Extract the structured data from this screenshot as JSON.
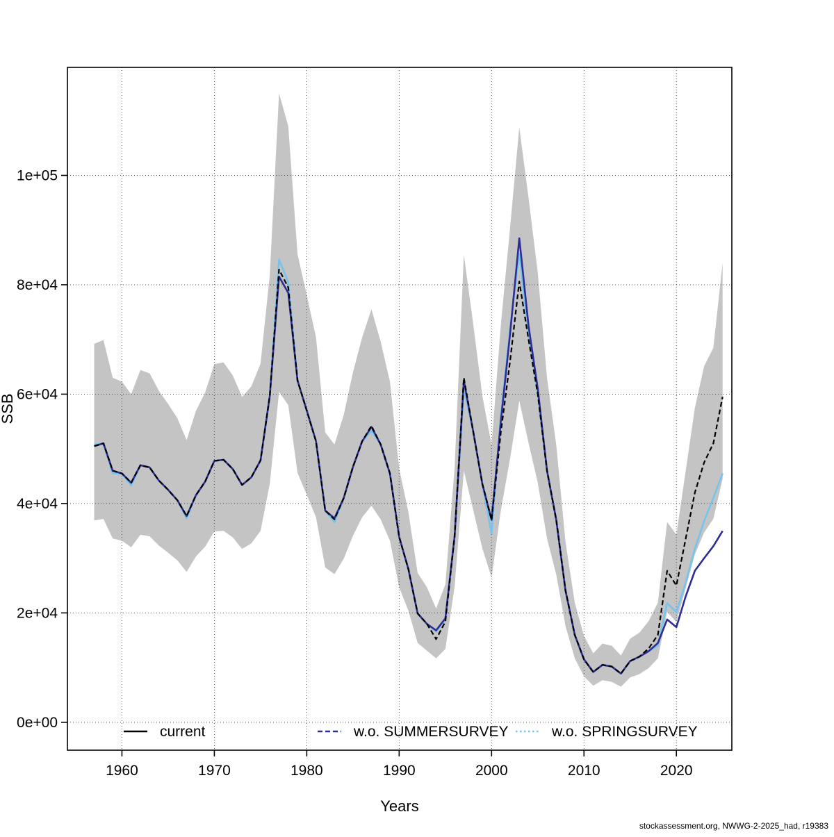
{
  "footer": "stockassessment.org, NWWG-2-2025_had, r19383",
  "chart_data": {
    "type": "line",
    "title": "",
    "xlabel": "Years",
    "ylabel": "SSB",
    "grid": true,
    "legend_position": "bottom",
    "xlim": [
      1954.1,
      2026.0
    ],
    "ylim": [
      -5100,
      119750
    ],
    "x_ticks": [
      1960,
      1970,
      1980,
      1990,
      2000,
      2010,
      2020
    ],
    "y_ticks": [
      {
        "value": 0,
        "label": "0e+00"
      },
      {
        "value": 20000,
        "label": "2e+04"
      },
      {
        "value": 40000,
        "label": "4e+04"
      },
      {
        "value": 60000,
        "label": "6e+04"
      },
      {
        "value": 80000,
        "label": "8e+04"
      },
      {
        "value": 100000,
        "label": "1e+05"
      }
    ],
    "years": [
      1957,
      1958,
      1959,
      1960,
      1961,
      1962,
      1963,
      1964,
      1965,
      1966,
      1967,
      1968,
      1969,
      1970,
      1971,
      1972,
      1973,
      1974,
      1975,
      1976,
      1977,
      1978,
      1979,
      1980,
      1981,
      1982,
      1983,
      1984,
      1985,
      1986,
      1987,
      1988,
      1989,
      1990,
      1991,
      1992,
      1993,
      1994,
      1995,
      1996,
      1997,
      1998,
      1999,
      2000,
      2001,
      2002,
      2003,
      2004,
      2005,
      2006,
      2007,
      2008,
      2009,
      2010,
      2011,
      2012,
      2013,
      2014,
      2015,
      2016,
      2017,
      2018,
      2019,
      2020,
      2021,
      2022,
      2023,
      2024,
      2025
    ],
    "series": [
      {
        "name": "current",
        "color": "#000000",
        "plot_style": "dashed",
        "legend_style": "solid",
        "values": [
          50500,
          51000,
          46000,
          45500,
          43800,
          47000,
          46600,
          44200,
          42500,
          40600,
          37700,
          41500,
          44000,
          47800,
          48000,
          46300,
          43400,
          44800,
          47900,
          59700,
          82800,
          79500,
          62500,
          57000,
          51400,
          38700,
          37100,
          41000,
          46700,
          51400,
          54200,
          50800,
          45500,
          33900,
          28000,
          19900,
          18000,
          15200,
          18400,
          34000,
          63000,
          53300,
          43600,
          37000,
          53000,
          66000,
          80600,
          70000,
          60000,
          46000,
          37000,
          24100,
          16000,
          11500,
          9200,
          10500,
          10200,
          8900,
          11200,
          12000,
          13500,
          16000,
          27700,
          25000,
          33500,
          42000,
          47500,
          51000,
          59500
        ]
      },
      {
        "name": "w.o. SUMMERSURVEY",
        "color": "#2e2d93",
        "plot_style": "solid",
        "legend_style": "dashed",
        "values": [
          50500,
          51000,
          46000,
          45500,
          43800,
          47000,
          46600,
          44200,
          42500,
          40600,
          37700,
          41500,
          44000,
          47800,
          48000,
          46300,
          43400,
          44800,
          47900,
          59700,
          81500,
          78500,
          62500,
          57000,
          51400,
          38700,
          37300,
          41000,
          46700,
          51400,
          54000,
          50800,
          45500,
          33900,
          28000,
          19900,
          18000,
          16800,
          19000,
          34000,
          62500,
          53300,
          43600,
          37000,
          55000,
          71000,
          88500,
          72500,
          61000,
          46000,
          37000,
          24100,
          16000,
          11500,
          9200,
          10500,
          10200,
          8900,
          11200,
          12000,
          13000,
          14500,
          18800,
          17400,
          23000,
          27700,
          30000,
          32200,
          35000
        ]
      },
      {
        "name": "w.o. SPRINGSURVEY",
        "color": "#76c4ec",
        "plot_style": "solid",
        "legend_style": "dotted",
        "values": [
          50800,
          51000,
          45500,
          45500,
          43300,
          47000,
          46600,
          44200,
          42500,
          40600,
          37300,
          41500,
          44000,
          47800,
          48000,
          46300,
          43400,
          44800,
          47900,
          59700,
          84600,
          80500,
          62500,
          57000,
          51400,
          38700,
          36600,
          41000,
          46700,
          51400,
          53300,
          50800,
          45500,
          33900,
          28000,
          19900,
          18000,
          16600,
          18800,
          34000,
          61000,
          53300,
          43600,
          34500,
          56000,
          72000,
          85700,
          71000,
          60000,
          46000,
          37000,
          24100,
          16000,
          11500,
          9200,
          10500,
          10200,
          8900,
          11200,
          12000,
          13000,
          14000,
          21800,
          20100,
          25500,
          31700,
          36800,
          41000,
          45500
        ]
      }
    ],
    "band": {
      "belongs_to": "current",
      "color": "#c4c4c4",
      "hi": [
        69200,
        69900,
        63000,
        62300,
        60000,
        64400,
        63800,
        60600,
        58200,
        55600,
        51600,
        56900,
        60300,
        65500,
        65800,
        63400,
        59500,
        61400,
        65600,
        81800,
        115000,
        109000,
        85600,
        78100,
        70400,
        53000,
        50800,
        56200,
        64000,
        70400,
        75500,
        69600,
        62300,
        46400,
        38400,
        27300,
        24700,
        20800,
        25200,
        46600,
        85500,
        73000,
        59700,
        50700,
        72600,
        90400,
        108800,
        95900,
        82200,
        63000,
        50700,
        33000,
        21900,
        15800,
        12600,
        14400,
        14000,
        12200,
        15300,
        16400,
        18500,
        21900,
        36600,
        34300,
        45900,
        57500,
        65100,
        68500,
        84000
      ],
      "lo": [
        36900,
        37200,
        33600,
        33200,
        32000,
        34300,
        34000,
        32300,
        31000,
        29600,
        27500,
        30300,
        32100,
        34900,
        35000,
        33800,
        31700,
        32700,
        35000,
        43600,
        60400,
        58000,
        45600,
        41600,
        37500,
        28300,
        27100,
        29900,
        34100,
        37500,
        39600,
        37100,
        33200,
        24700,
        20400,
        14500,
        13100,
        11700,
        13400,
        24800,
        46000,
        38900,
        31800,
        26500,
        38700,
        48200,
        58800,
        51100,
        43800,
        33600,
        27000,
        17600,
        11700,
        8400,
        6700,
        7700,
        7400,
        6500,
        8200,
        8800,
        9900,
        11700,
        20200,
        18300,
        24500,
        30700,
        34700,
        37200,
        44500
      ]
    }
  }
}
